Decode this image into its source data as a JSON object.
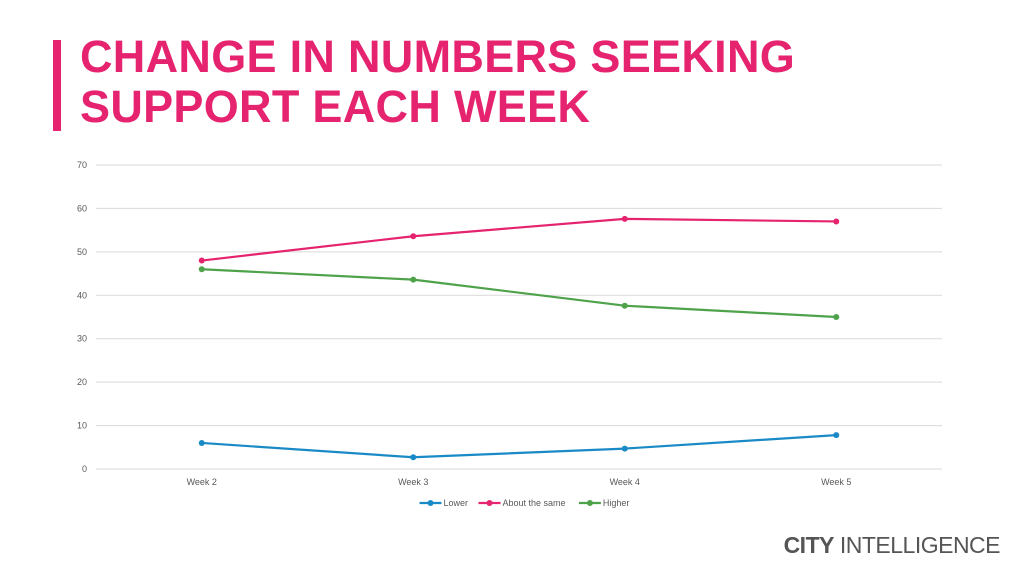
{
  "title": {
    "line1": "CHANGE IN NUMBERS SEEKING",
    "line2": "SUPPORT EACH WEEK",
    "color": "#e5236f"
  },
  "brand": {
    "bold": "CITY",
    "regular": "INTELLIGENCE"
  },
  "chart_data": {
    "type": "line",
    "categories": [
      "Week 2",
      "Week 3",
      "Week 4",
      "Week 5"
    ],
    "series": [
      {
        "name": "Lower",
        "color": "#1a8ac6",
        "values": [
          6,
          2.7,
          4.7,
          7.8
        ]
      },
      {
        "name": "About the same",
        "color": "#e5236f",
        "values": [
          48,
          53.6,
          57.6,
          57
        ]
      },
      {
        "name": "Higher",
        "color": "#4ea24a",
        "values": [
          46,
          43.6,
          37.6,
          35
        ]
      }
    ],
    "ylim": [
      0,
      70
    ],
    "yticks": [
      0,
      10,
      20,
      30,
      40,
      50,
      60,
      70
    ],
    "grid": true,
    "legend": "bottom-center",
    "title": "",
    "xlabel": "",
    "ylabel": ""
  }
}
